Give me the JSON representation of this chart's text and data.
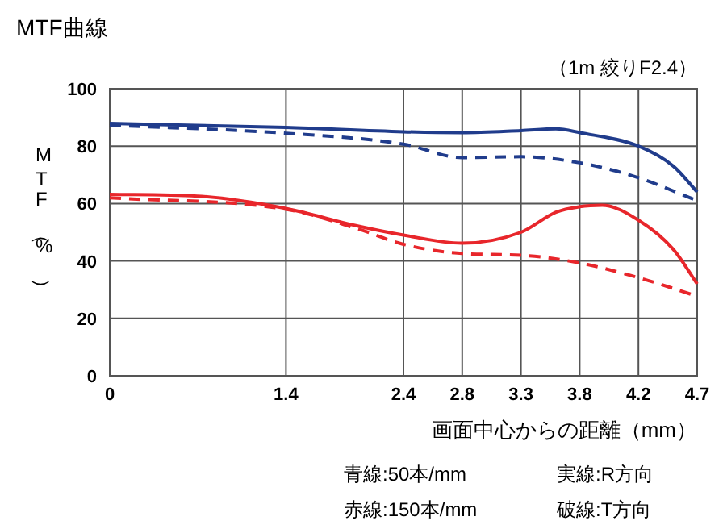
{
  "chart_data": {
    "type": "line",
    "title": "MTF曲線",
    "xlabel": "画面中心からの距離（mm）",
    "ylabel": "MTF（%）",
    "annotations": [
      "（1m 絞りF2.4）",
      "青線:50本/mm",
      "実線:R方向",
      "赤線:150本/mm",
      "破線:T方向"
    ],
    "xlim": [
      0,
      4.7
    ],
    "xticks": [
      0,
      {
        "value": 1.41,
        "label": "1.4"
      },
      {
        "value": 2.35,
        "label": "2.4"
      },
      {
        "value": 2.82,
        "label": "2.8"
      },
      {
        "value": 3.29,
        "label": "3.3"
      },
      {
        "value": 3.76,
        "label": "3.8"
      },
      {
        "value": 4.23,
        "label": "4.2"
      },
      4.7
    ],
    "ylim": [
      0,
      100
    ],
    "yticks": [
      0,
      20,
      40,
      60,
      80,
      100
    ],
    "grid": true,
    "series": [
      {
        "color": "#203c8c",
        "line_style": "solid",
        "x": [
          0,
          1.41,
          2.35,
          2.82,
          3.29,
          3.57,
          3.76,
          4.23,
          4.51,
          4.7
        ],
        "values": [
          87.9,
          86.5,
          85,
          84.7,
          85.4,
          86,
          84.7,
          80,
          73,
          64
        ]
      },
      {
        "color": "#203c8c",
        "line_style": "dashed",
        "x": [
          0,
          1.41,
          2.35,
          2.82,
          3.29,
          3.76,
          4.23,
          4.7
        ],
        "values": [
          87.3,
          84.5,
          80.7,
          76,
          76.3,
          74.2,
          69,
          61
        ]
      },
      {
        "color": "#e8262b",
        "line_style": "solid",
        "x": [
          0,
          0.7,
          1.41,
          1.97,
          2.35,
          2.82,
          3.29,
          3.57,
          3.76,
          3.94,
          4.23,
          4.51,
          4.7
        ],
        "values": [
          63.2,
          62.6,
          58.3,
          52.3,
          49,
          46.2,
          50,
          57,
          58.9,
          59.4,
          54.2,
          44,
          32
        ]
      },
      {
        "color": "#e8262b",
        "line_style": "dashed",
        "x": [
          0,
          1.41,
          1.97,
          2.35,
          2.82,
          3.29,
          3.76,
          4.23,
          4.7
        ],
        "values": [
          62,
          58,
          51.4,
          45.8,
          42.6,
          42,
          39.3,
          34.2,
          27.7
        ]
      }
    ]
  }
}
